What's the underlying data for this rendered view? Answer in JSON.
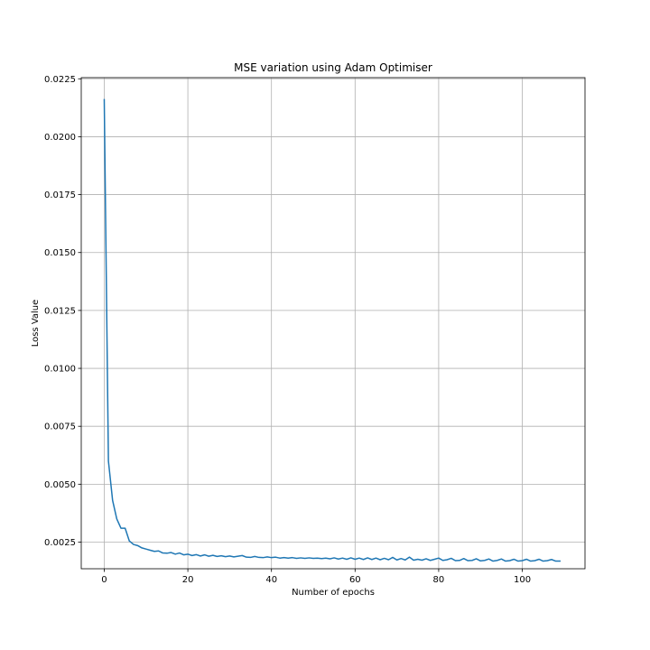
{
  "chart_data": {
    "type": "line",
    "title": "MSE variation using Adam Optimiser",
    "xlabel": "Number of epochs",
    "ylabel": "Loss Value",
    "xlim": [
      -5.5,
      115
    ],
    "ylim": [
      0.00135,
      0.02255
    ],
    "grid": true,
    "x_ticks": [
      0,
      20,
      40,
      60,
      80,
      100
    ],
    "x_tick_labels": [
      "0",
      "20",
      "40",
      "60",
      "80",
      "100"
    ],
    "y_ticks": [
      0.0025,
      0.005,
      0.0075,
      0.01,
      0.0125,
      0.015,
      0.0175,
      0.02,
      0.0225
    ],
    "y_tick_labels": [
      "0.0025",
      "0.0050",
      "0.0075",
      "0.0100",
      "0.0125",
      "0.0150",
      "0.0175",
      "0.0200",
      "0.0225"
    ],
    "series": [
      {
        "color": "#1f77b4",
        "x": [
          0,
          1,
          2,
          3,
          4,
          5,
          6,
          7,
          8,
          9,
          10,
          11,
          12,
          13,
          14,
          15,
          16,
          17,
          18,
          19,
          20,
          21,
          22,
          23,
          24,
          25,
          26,
          27,
          28,
          29,
          30,
          31,
          32,
          33,
          34,
          35,
          36,
          37,
          38,
          39,
          40,
          41,
          42,
          43,
          44,
          45,
          46,
          47,
          48,
          49,
          50,
          51,
          52,
          53,
          54,
          55,
          56,
          57,
          58,
          59,
          60,
          61,
          62,
          63,
          64,
          65,
          66,
          67,
          68,
          69,
          70,
          71,
          72,
          73,
          74,
          75,
          76,
          77,
          78,
          79,
          80,
          81,
          82,
          83,
          84,
          85,
          86,
          87,
          88,
          89,
          90,
          91,
          92,
          93,
          94,
          95,
          96,
          97,
          98,
          99,
          100,
          101,
          102,
          103,
          104,
          105,
          106,
          107,
          108,
          109
        ],
        "y": [
          0.0216,
          0.006,
          0.0043,
          0.0035,
          0.0031,
          0.0031,
          0.00255,
          0.0024,
          0.00235,
          0.00225,
          0.0022,
          0.00215,
          0.0021,
          0.00212,
          0.00203,
          0.00202,
          0.00205,
          0.00198,
          0.00203,
          0.00195,
          0.00198,
          0.00192,
          0.00196,
          0.0019,
          0.00195,
          0.00189,
          0.00193,
          0.00188,
          0.00191,
          0.00187,
          0.0019,
          0.00186,
          0.00189,
          0.00192,
          0.00185,
          0.00184,
          0.00188,
          0.00184,
          0.00183,
          0.00186,
          0.00183,
          0.00185,
          0.00181,
          0.00183,
          0.00181,
          0.00183,
          0.0018,
          0.00182,
          0.0018,
          0.00182,
          0.0018,
          0.00181,
          0.00179,
          0.00181,
          0.00178,
          0.00182,
          0.00177,
          0.00181,
          0.00176,
          0.00182,
          0.00176,
          0.00181,
          0.00175,
          0.00182,
          0.00175,
          0.00181,
          0.00174,
          0.0018,
          0.00174,
          0.00184,
          0.00173,
          0.00179,
          0.00173,
          0.00185,
          0.00172,
          0.00176,
          0.00172,
          0.00178,
          0.00171,
          0.00176,
          0.00181,
          0.00171,
          0.00174,
          0.0018,
          0.0017,
          0.00171,
          0.00179,
          0.0017,
          0.00171,
          0.00178,
          0.00169,
          0.00171,
          0.00177,
          0.00168,
          0.00171,
          0.00177,
          0.00168,
          0.0017,
          0.00176,
          0.00168,
          0.0017,
          0.00176,
          0.00168,
          0.0017,
          0.00176,
          0.00168,
          0.0017,
          0.00175,
          0.00168,
          0.00168
        ]
      }
    ]
  }
}
